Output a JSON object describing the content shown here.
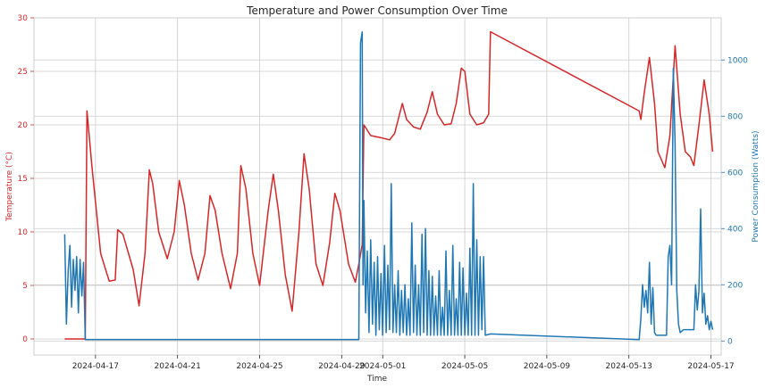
{
  "chart_data": {
    "type": "line",
    "title": "Temperature and Power Consumption Over Time",
    "xlabel": "Time",
    "ylabel_left": "Temperature (°C)",
    "ylabel_right": "Power Consumption (Watts)",
    "xlim": [
      "2024-04-14T00:00",
      "2024-05-17T12:00"
    ],
    "ylim_left": [
      -1.5,
      30
    ],
    "ylim_right": [
      -50,
      1150
    ],
    "x_ticks": [
      "2024-04-17",
      "2024-04-21",
      "2024-04-25",
      "2024-04-29",
      "2024-05-01",
      "2024-05-05",
      "2024-05-09",
      "2024-05-13",
      "2024-05-17"
    ],
    "y_ticks_left": [
      0,
      5,
      10,
      15,
      20,
      25,
      30
    ],
    "y_ticks_right": [
      0,
      200,
      400,
      600,
      800,
      1000
    ],
    "grid": true,
    "colors": {
      "temperature": "#d62728",
      "power": "#1f77b4"
    },
    "series": [
      {
        "name": "",
        "axis": "left",
        "color": "#d62728",
        "points": [
          [
            "2024-04-15T12:00",
            0
          ],
          [
            "2024-04-16T12:00",
            0
          ],
          [
            "2024-04-16T14:00",
            21.3
          ],
          [
            "2024-04-16T20:00",
            16
          ],
          [
            "2024-04-17T06:00",
            8
          ],
          [
            "2024-04-17T16:00",
            5.4
          ],
          [
            "2024-04-17T23:00",
            5.5
          ],
          [
            "2024-04-18T02:00",
            10.2
          ],
          [
            "2024-04-18T08:00",
            9.8
          ],
          [
            "2024-04-18T20:00",
            6.5
          ],
          [
            "2024-04-19T03:00",
            3.1
          ],
          [
            "2024-04-19T10:00",
            8
          ],
          [
            "2024-04-19T15:00",
            15.8
          ],
          [
            "2024-04-19T19:00",
            14.5
          ],
          [
            "2024-04-20T02:00",
            10
          ],
          [
            "2024-04-20T12:00",
            7.5
          ],
          [
            "2024-04-20T20:00",
            10
          ],
          [
            "2024-04-21T02:00",
            14.8
          ],
          [
            "2024-04-21T08:00",
            12.5
          ],
          [
            "2024-04-21T16:00",
            8
          ],
          [
            "2024-04-22T00:00",
            5.5
          ],
          [
            "2024-04-22T08:00",
            8
          ],
          [
            "2024-04-22T14:00",
            13.4
          ],
          [
            "2024-04-22T20:00",
            12
          ],
          [
            "2024-04-23T04:00",
            8
          ],
          [
            "2024-04-23T14:00",
            4.7
          ],
          [
            "2024-04-23T22:00",
            8
          ],
          [
            "2024-04-24T02:00",
            16.2
          ],
          [
            "2024-04-24T08:00",
            14
          ],
          [
            "2024-04-24T16:00",
            8
          ],
          [
            "2024-04-25T00:00",
            5
          ],
          [
            "2024-04-25T10:00",
            12
          ],
          [
            "2024-04-25T16:00",
            15.4
          ],
          [
            "2024-04-25T22:00",
            12
          ],
          [
            "2024-04-26T06:00",
            6
          ],
          [
            "2024-04-26T14:00",
            2.6
          ],
          [
            "2024-04-26T22:00",
            10
          ],
          [
            "2024-04-27T04:00",
            17.3
          ],
          [
            "2024-04-27T10:00",
            14
          ],
          [
            "2024-04-27T18:00",
            7
          ],
          [
            "2024-04-28T02:00",
            5
          ],
          [
            "2024-04-28T10:00",
            9
          ],
          [
            "2024-04-28T16:00",
            13.6
          ],
          [
            "2024-04-28T22:00",
            12
          ],
          [
            "2024-04-29T08:00",
            7
          ],
          [
            "2024-04-29T16:00",
            5.3
          ],
          [
            "2024-04-29T20:00",
            7
          ],
          [
            "2024-04-30T00:00",
            8.8
          ],
          [
            "2024-04-30T02:00",
            20
          ],
          [
            "2024-04-30T10:00",
            19
          ],
          [
            "2024-04-30T22:00",
            18.8
          ],
          [
            "2024-05-01T08:00",
            18.6
          ],
          [
            "2024-05-01T14:00",
            19.2
          ],
          [
            "2024-05-01T20:00",
            21.1
          ],
          [
            "2024-05-01T23:00",
            22
          ],
          [
            "2024-05-02T04:00",
            20.5
          ],
          [
            "2024-05-02T12:00",
            19.8
          ],
          [
            "2024-05-02T20:00",
            19.6
          ],
          [
            "2024-05-03T04:00",
            21.2
          ],
          [
            "2024-05-03T10:00",
            23.1
          ],
          [
            "2024-05-03T16:00",
            21
          ],
          [
            "2024-05-04T00:00",
            20
          ],
          [
            "2024-05-04T08:00",
            20.1
          ],
          [
            "2024-05-04T14:00",
            22
          ],
          [
            "2024-05-04T20:00",
            25.3
          ],
          [
            "2024-05-05T00:00",
            25
          ],
          [
            "2024-05-05T06:00",
            21
          ],
          [
            "2024-05-05T14:00",
            20
          ],
          [
            "2024-05-05T22:00",
            20.2
          ],
          [
            "2024-05-06T04:00",
            21
          ],
          [
            "2024-05-06T06:00",
            28.7
          ],
          [
            "2024-05-13T12:00",
            21.3
          ],
          [
            "2024-05-13T14:00",
            20.5
          ],
          [
            "2024-05-13T18:00",
            23
          ],
          [
            "2024-05-14T00:00",
            26.3
          ],
          [
            "2024-05-14T06:00",
            22
          ],
          [
            "2024-05-14T10:00",
            17.5
          ],
          [
            "2024-05-14T18:00",
            16
          ],
          [
            "2024-05-15T00:00",
            19
          ],
          [
            "2024-05-15T06:00",
            27.4
          ],
          [
            "2024-05-15T12:00",
            21
          ],
          [
            "2024-05-15T18:00",
            17.5
          ],
          [
            "2024-05-16T00:00",
            17
          ],
          [
            "2024-05-16T04:00",
            16.2
          ],
          [
            "2024-05-16T10:00",
            20
          ],
          [
            "2024-05-16T16:00",
            24.2
          ],
          [
            "2024-05-16T22:00",
            21
          ],
          [
            "2024-05-17T02:00",
            17.5
          ]
        ]
      },
      {
        "name": "",
        "axis": "right",
        "color": "#1f77b4",
        "points": [
          [
            "2024-04-15T12:00",
            380
          ],
          [
            "2024-04-15T14:00",
            60
          ],
          [
            "2024-04-15T16:00",
            250
          ],
          [
            "2024-04-15T18:00",
            340
          ],
          [
            "2024-04-15T20:00",
            120
          ],
          [
            "2024-04-15T22:00",
            290
          ],
          [
            "2024-04-16T00:00",
            180
          ],
          [
            "2024-04-16T02:00",
            300
          ],
          [
            "2024-04-16T04:00",
            100
          ],
          [
            "2024-04-16T06:00",
            290
          ],
          [
            "2024-04-16T08:00",
            160
          ],
          [
            "2024-04-16T10:00",
            280
          ],
          [
            "2024-04-16T12:00",
            5
          ],
          [
            "2024-04-29T20:00",
            5
          ],
          [
            "2024-04-29T22:00",
            1060
          ],
          [
            "2024-04-30T00:00",
            1100
          ],
          [
            "2024-04-30T01:00",
            200
          ],
          [
            "2024-04-30T02:00",
            500
          ],
          [
            "2024-04-30T04:00",
            100
          ],
          [
            "2024-04-30T06:00",
            320
          ],
          [
            "2024-04-30T08:00",
            30
          ],
          [
            "2024-04-30T10:00",
            360
          ],
          [
            "2024-04-30T12:00",
            60
          ],
          [
            "2024-04-30T14:00",
            280
          ],
          [
            "2024-04-30T16:00",
            20
          ],
          [
            "2024-04-30T18:00",
            300
          ],
          [
            "2024-04-30T20:00",
            40
          ],
          [
            "2024-04-30T22:00",
            240
          ],
          [
            "2024-05-01T00:00",
            20
          ],
          [
            "2024-05-01T02:00",
            340
          ],
          [
            "2024-05-01T04:00",
            30
          ],
          [
            "2024-05-01T06:00",
            270
          ],
          [
            "2024-05-01T08:00",
            40
          ],
          [
            "2024-05-01T10:00",
            560
          ],
          [
            "2024-05-01T12:00",
            30
          ],
          [
            "2024-05-01T14:00",
            200
          ],
          [
            "2024-05-01T16:00",
            30
          ],
          [
            "2024-05-01T18:00",
            250
          ],
          [
            "2024-05-01T20:00",
            20
          ],
          [
            "2024-05-01T22:00",
            180
          ],
          [
            "2024-05-02T00:00",
            30
          ],
          [
            "2024-05-02T02:00",
            200
          ],
          [
            "2024-05-02T04:00",
            20
          ],
          [
            "2024-05-02T06:00",
            150
          ],
          [
            "2024-05-02T08:00",
            20
          ],
          [
            "2024-05-02T10:00",
            420
          ],
          [
            "2024-05-02T12:00",
            30
          ],
          [
            "2024-05-02T14:00",
            270
          ],
          [
            "2024-05-02T16:00",
            20
          ],
          [
            "2024-05-02T18:00",
            200
          ],
          [
            "2024-05-02T20:00",
            20
          ],
          [
            "2024-05-02T22:00",
            380
          ],
          [
            "2024-05-03T00:00",
            30
          ],
          [
            "2024-05-03T02:00",
            400
          ],
          [
            "2024-05-03T04:00",
            20
          ],
          [
            "2024-05-03T06:00",
            250
          ],
          [
            "2024-05-03T08:00",
            20
          ],
          [
            "2024-05-03T10:00",
            230
          ],
          [
            "2024-05-03T12:00",
            20
          ],
          [
            "2024-05-03T14:00",
            160
          ],
          [
            "2024-05-03T16:00",
            20
          ],
          [
            "2024-05-03T18:00",
            250
          ],
          [
            "2024-05-03T20:00",
            20
          ],
          [
            "2024-05-03T22:00",
            120
          ],
          [
            "2024-05-04T00:00",
            20
          ],
          [
            "2024-05-04T02:00",
            320
          ],
          [
            "2024-05-04T04:00",
            20
          ],
          [
            "2024-05-04T06:00",
            180
          ],
          [
            "2024-05-04T08:00",
            20
          ],
          [
            "2024-05-04T10:00",
            340
          ],
          [
            "2024-05-04T12:00",
            20
          ],
          [
            "2024-05-04T14:00",
            150
          ],
          [
            "2024-05-04T16:00",
            20
          ],
          [
            "2024-05-04T18:00",
            280
          ],
          [
            "2024-05-04T20:00",
            20
          ],
          [
            "2024-05-04T22:00",
            260
          ],
          [
            "2024-05-05T00:00",
            20
          ],
          [
            "2024-05-05T02:00",
            170
          ],
          [
            "2024-05-05T04:00",
            20
          ],
          [
            "2024-05-05T06:00",
            330
          ],
          [
            "2024-05-05T08:00",
            20
          ],
          [
            "2024-05-05T10:00",
            560
          ],
          [
            "2024-05-05T12:00",
            20
          ],
          [
            "2024-05-05T14:00",
            360
          ],
          [
            "2024-05-05T16:00",
            20
          ],
          [
            "2024-05-05T18:00",
            300
          ],
          [
            "2024-05-05T20:00",
            40
          ],
          [
            "2024-05-05T22:00",
            300
          ],
          [
            "2024-05-06T00:00",
            20
          ],
          [
            "2024-05-06T06:00",
            25
          ],
          [
            "2024-05-13T12:00",
            5
          ],
          [
            "2024-05-13T14:00",
            80
          ],
          [
            "2024-05-13T16:00",
            200
          ],
          [
            "2024-05-13T18:00",
            120
          ],
          [
            "2024-05-13T20:00",
            180
          ],
          [
            "2024-05-13T22:00",
            100
          ],
          [
            "2024-05-14T00:00",
            280
          ],
          [
            "2024-05-14T02:00",
            60
          ],
          [
            "2024-05-14T04:00",
            190
          ],
          [
            "2024-05-14T06:00",
            30
          ],
          [
            "2024-05-14T08:00",
            20
          ],
          [
            "2024-05-14T12:00",
            20
          ],
          [
            "2024-05-14T16:00",
            20
          ],
          [
            "2024-05-14T20:00",
            20
          ],
          [
            "2024-05-14T22:00",
            300
          ],
          [
            "2024-05-15T00:00",
            340
          ],
          [
            "2024-05-15T02:00",
            200
          ],
          [
            "2024-05-15T04:00",
            970
          ],
          [
            "2024-05-15T06:00",
            700
          ],
          [
            "2024-05-15T08:00",
            180
          ],
          [
            "2024-05-15T10:00",
            60
          ],
          [
            "2024-05-15T12:00",
            30
          ],
          [
            "2024-05-15T16:00",
            40
          ],
          [
            "2024-05-15T20:00",
            40
          ],
          [
            "2024-05-16T00:00",
            40
          ],
          [
            "2024-05-16T04:00",
            40
          ],
          [
            "2024-05-16T06:00",
            200
          ],
          [
            "2024-05-16T08:00",
            110
          ],
          [
            "2024-05-16T10:00",
            180
          ],
          [
            "2024-05-16T12:00",
            470
          ],
          [
            "2024-05-16T14:00",
            100
          ],
          [
            "2024-05-16T16:00",
            170
          ],
          [
            "2024-05-16T18:00",
            60
          ],
          [
            "2024-05-16T20:00",
            90
          ],
          [
            "2024-05-16T22:00",
            40
          ],
          [
            "2024-05-17T00:00",
            70
          ],
          [
            "2024-05-17T02:00",
            40
          ]
        ]
      }
    ]
  }
}
